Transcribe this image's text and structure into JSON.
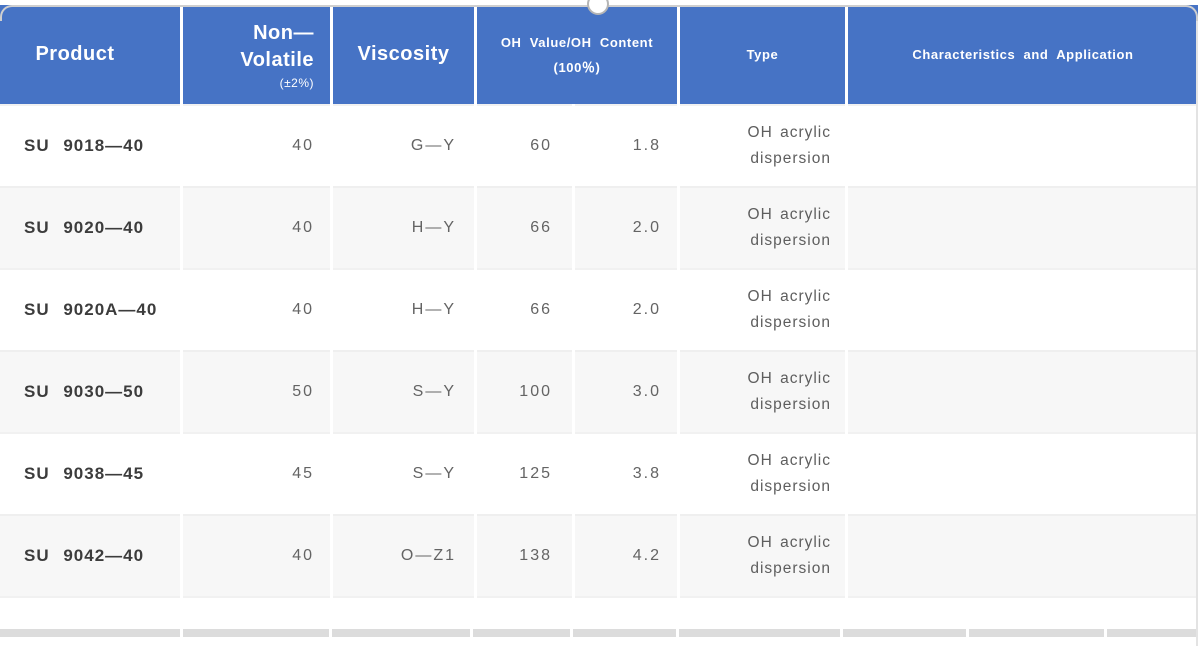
{
  "colors": {
    "header_bg": "#4673c5",
    "header_text": "#ffffff",
    "alt_row_bg": "#f7f7f7",
    "separator": "#f1f1f1",
    "next_table_band": "#dcdcdc"
  },
  "table": {
    "headers": {
      "product": "Product",
      "non_volatile_line1": "Non—",
      "non_volatile_line2": "Volatile",
      "non_volatile_note": "(±2%)",
      "viscosity": "Viscosity",
      "oh_line1": "OH Value/OH Content",
      "oh_line2": "(100％)",
      "type": "Type",
      "characteristics": "Characteristics and Application"
    },
    "rows": [
      {
        "product": "SU 9018—40",
        "non_volatile": "40",
        "viscosity": "G—Y",
        "oh_value": "60",
        "oh_content": "1.8",
        "type_l1": "OH acrylic",
        "type_l2": "dispersion",
        "characteristics": ""
      },
      {
        "product": "SU 9020—40",
        "non_volatile": "40",
        "viscosity": "H—Y",
        "oh_value": "66",
        "oh_content": "2.0",
        "type_l1": "OH acrylic",
        "type_l2": "dispersion",
        "characteristics": ""
      },
      {
        "product": "SU 9020A—40",
        "non_volatile": "40",
        "viscosity": "H—Y",
        "oh_value": "66",
        "oh_content": "2.0",
        "type_l1": "OH acrylic",
        "type_l2": "dispersion",
        "characteristics": ""
      },
      {
        "product": "SU 9030—50",
        "non_volatile": "50",
        "viscosity": "S—Y",
        "oh_value": "100",
        "oh_content": "3.0",
        "type_l1": "OH acrylic",
        "type_l2": "dispersion",
        "characteristics": ""
      },
      {
        "product": "SU 9038—45",
        "non_volatile": "45",
        "viscosity": "S—Y",
        "oh_value": "125",
        "oh_content": "3.8",
        "type_l1": "OH acrylic",
        "type_l2": "dispersion",
        "characteristics": ""
      },
      {
        "product": "SU 9042—40",
        "non_volatile": "40",
        "viscosity": "O—Z1",
        "oh_value": "138",
        "oh_content": "4.2",
        "type_l1": "OH acrylic",
        "type_l2": "dispersion",
        "characteristics": ""
      }
    ]
  }
}
